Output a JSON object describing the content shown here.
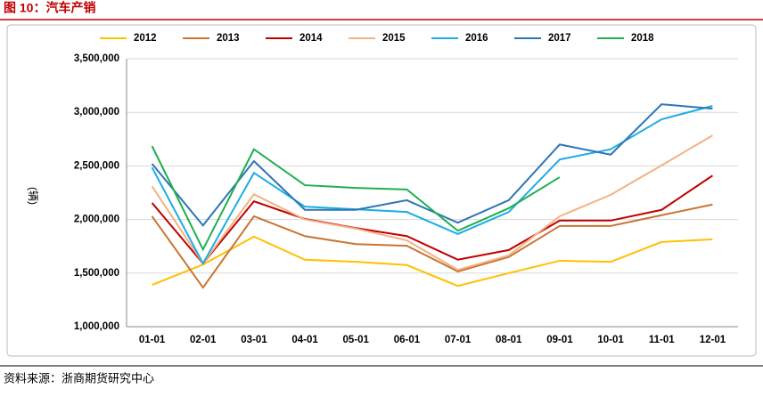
{
  "header": {
    "title": "图 10：汽车产销"
  },
  "chart_data": {
    "type": "line",
    "ylabel": "(辆)",
    "categories": [
      "01-01",
      "02-01",
      "03-01",
      "04-01",
      "05-01",
      "06-01",
      "07-01",
      "08-01",
      "09-01",
      "10-01",
      "11-01",
      "12-01"
    ],
    "series": [
      {
        "name": "2012",
        "color": "#FFC000",
        "values": [
          1390000,
          1580000,
          1840000,
          1625000,
          1605000,
          1575000,
          1380000,
          1500000,
          1615000,
          1605000,
          1790000,
          1815000
        ]
      },
      {
        "name": "2013",
        "color": "#C87533",
        "values": [
          2030000,
          1365000,
          2030000,
          1845000,
          1770000,
          1755000,
          1515000,
          1650000,
          1940000,
          1940000,
          2040000,
          2140000
        ]
      },
      {
        "name": "2014",
        "color": "#C00000",
        "values": [
          2155000,
          1590000,
          2170000,
          2005000,
          1920000,
          1845000,
          1625000,
          1715000,
          1990000,
          1990000,
          2090000,
          2410000
        ]
      },
      {
        "name": "2015",
        "color": "#F4B183",
        "values": [
          2310000,
          1590000,
          2235000,
          2000000,
          1915000,
          1805000,
          1530000,
          1665000,
          2030000,
          2230000,
          2505000,
          2785000
        ]
      },
      {
        "name": "2016",
        "color": "#1CADE4",
        "values": [
          2485000,
          1590000,
          2435000,
          2120000,
          2095000,
          2070000,
          1865000,
          2070000,
          2560000,
          2655000,
          2935000,
          3060000
        ]
      },
      {
        "name": "2017",
        "color": "#2E75B6",
        "values": [
          2520000,
          1945000,
          2545000,
          2090000,
          2090000,
          2180000,
          1970000,
          2180000,
          2700000,
          2605000,
          3075000,
          3035000
        ]
      },
      {
        "name": "2018",
        "color": "#1FAF50",
        "values": [
          2685000,
          1720000,
          2655000,
          2320000,
          2295000,
          2280000,
          1895000,
          2105000,
          2395000,
          null,
          null,
          null
        ]
      }
    ],
    "ylim": [
      1000000,
      3500000
    ],
    "yticks": [
      {
        "value": 1000000,
        "label": "1,000,000"
      },
      {
        "value": 1500000,
        "label": "1,500,000"
      },
      {
        "value": 2000000,
        "label": "2,000,000"
      },
      {
        "value": 2500000,
        "label": "2,500,000"
      },
      {
        "value": 3000000,
        "label": "3,000,000"
      },
      {
        "value": 3500000,
        "label": "3,500,000"
      }
    ],
    "grid": true,
    "legend": "top"
  },
  "footer": {
    "source": "资料来源：浙商期货研究中心"
  }
}
